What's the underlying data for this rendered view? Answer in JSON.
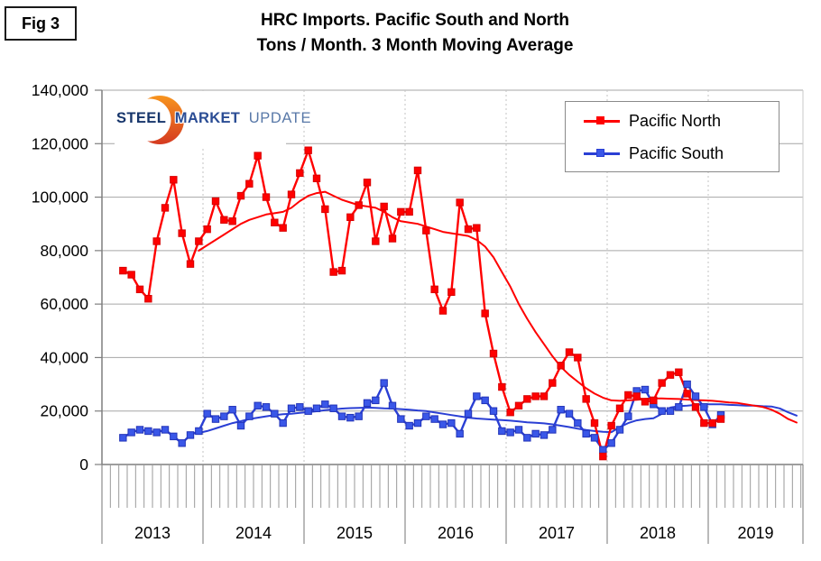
{
  "figure_label": "Fig 3",
  "title": {
    "line1": "HRC Imports. Pacific South and North",
    "line2": "Tons / Month. 3 Month Moving Average"
  },
  "logo": {
    "steel": "STEEL",
    "market": "MARKET",
    "update": "UPDATE",
    "colors": {
      "steel": "#16356B",
      "market": "#2A4C94",
      "update": "#5878A8",
      "swoosh_top": "#F7941E",
      "swoosh_bottom": "#D53A21"
    }
  },
  "legend": {
    "items": [
      {
        "label": "Pacific North",
        "color": "#FF0000",
        "marker_fill": "#FF0000"
      },
      {
        "label": "Pacific South",
        "color": "#2A3FD4",
        "marker_fill": "#3A57E8"
      }
    ]
  },
  "chart_data": {
    "type": "line",
    "title": "HRC Imports. Pacific South and North",
    "subtitle": "Tons / Month. 3 Month Moving Average",
    "unit": "tons per month",
    "grid": {
      "horizontal": true,
      "vertical_year_dotted": true
    },
    "legend_position": "top-right",
    "x_axis": {
      "start": "2013-03",
      "end": "2019-11",
      "minor_tick": "month",
      "year_labels": [
        "2013",
        "2014",
        "2015",
        "2016",
        "2017",
        "2018",
        "2019"
      ]
    },
    "y_axis": {
      "min": 0,
      "max": 140000,
      "tick_interval": 20000,
      "tick_labels_top_down": [
        "140,000",
        "120,000",
        "100,000",
        "80,000",
        "60,000",
        "40,000",
        "20,000",
        "0"
      ]
    },
    "series": [
      {
        "name": "Pacific North",
        "role": "3 month moving average",
        "style": "line-markers",
        "marker": "square",
        "color": "#FF0000",
        "marker_fill": "#FF0000",
        "marker_edge": "#D80000",
        "start_month": "2013-03",
        "values": [
          72500,
          71000,
          65500,
          62000,
          83500,
          96000,
          106500,
          86500,
          75000,
          83500,
          88000,
          98500,
          91500,
          91000,
          100500,
          105000,
          115500,
          100000,
          90500,
          88500,
          101000,
          109000,
          117500,
          107000,
          95500,
          72000,
          72500,
          92500,
          97000,
          105500,
          83500,
          96500,
          84500,
          94500,
          94500,
          110000,
          87500,
          65500,
          57500,
          64500,
          98000,
          88000,
          88500,
          56500,
          41500,
          29000,
          19500,
          22000,
          24500,
          25500,
          25500,
          30500,
          37000,
          42000,
          40000,
          24500,
          15500,
          3000,
          14500,
          21000,
          26000,
          25500,
          23500,
          24000,
          30500,
          33500,
          34500,
          26500,
          21500,
          15500,
          15500,
          17000
        ]
      },
      {
        "name": "Pacific South",
        "role": "3 month moving average",
        "style": "line-markers",
        "marker": "square",
        "color": "#2A3FD4",
        "marker_fill": "#3A57E8",
        "marker_edge": "#2233B8",
        "start_month": "2013-03",
        "values": [
          10000,
          12000,
          13000,
          12500,
          12000,
          13000,
          10500,
          8000,
          11000,
          12500,
          19000,
          17000,
          18000,
          20500,
          14500,
          18000,
          22000,
          21500,
          19000,
          15500,
          21000,
          21500,
          20000,
          21000,
          22500,
          21000,
          18000,
          17500,
          18000,
          23000,
          24000,
          30500,
          22000,
          17000,
          14500,
          15500,
          18000,
          17000,
          15000,
          15500,
          11500,
          19000,
          25500,
          24000,
          20000,
          12500,
          12000,
          13000,
          10000,
          11500,
          11000,
          13000,
          20500,
          19000,
          15500,
          11500,
          10000,
          5500,
          8000,
          13000,
          18000,
          27500,
          28000,
          22500,
          20000,
          20000,
          21500,
          30000,
          25500,
          21500,
          15000,
          18500
        ]
      },
      {
        "name": "Pacific North trend",
        "role": "smoothed trend line",
        "style": "smooth-line",
        "color": "#FF0000",
        "start_month": "2013-12",
        "values": [
          80000,
          82000,
          84000,
          86000,
          88000,
          90000,
          91500,
          92500,
          93500,
          94000,
          94500,
          96000,
          98500,
          100500,
          101500,
          102000,
          100500,
          99000,
          98000,
          97000,
          96500,
          96000,
          94500,
          92500,
          91000,
          90500,
          90000,
          89000,
          88000,
          87000,
          86500,
          86000,
          85500,
          84000,
          81500,
          77500,
          72000,
          66500,
          60000,
          54500,
          49500,
          45000,
          40500,
          36500,
          33500,
          31000,
          28500,
          26500,
          25000,
          24000,
          23800,
          24000,
          24200,
          24500,
          24700,
          24700,
          24600,
          24500,
          24300,
          24100,
          24000,
          23800,
          23500,
          23200,
          23000,
          22500,
          22000,
          21500,
          20500,
          19000,
          17000,
          15700
        ]
      },
      {
        "name": "Pacific South trend",
        "role": "smoothed trend line",
        "style": "smooth-line",
        "color": "#2A3FD4",
        "start_month": "2013-12",
        "values": [
          11800,
          12500,
          13500,
          14500,
          15500,
          16200,
          17000,
          17500,
          18000,
          18500,
          18800,
          19000,
          19300,
          19600,
          19900,
          20300,
          20600,
          20900,
          21100,
          21200,
          21300,
          21200,
          21000,
          20900,
          20700,
          20500,
          20200,
          20000,
          19500,
          19000,
          18500,
          18000,
          17500,
          17200,
          17000,
          16800,
          16600,
          16400,
          16100,
          15800,
          15600,
          15400,
          15000,
          14500,
          14000,
          13400,
          12900,
          12500,
          12200,
          12100,
          14000,
          15500,
          16500,
          17000,
          17300,
          19000,
          21300,
          21800,
          22000,
          22300,
          22500,
          22500,
          22500,
          22300,
          22200,
          22000,
          22000,
          21800,
          21700,
          21000,
          19500,
          18300
        ]
      }
    ]
  }
}
